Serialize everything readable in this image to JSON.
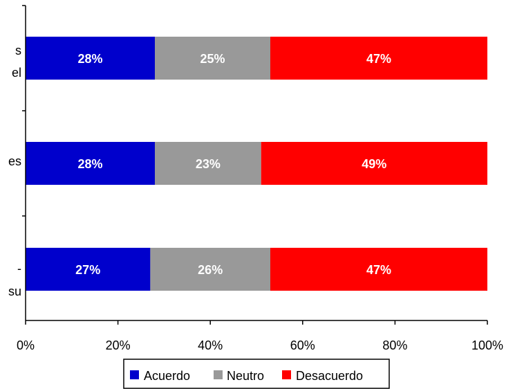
{
  "chart_data": {
    "type": "bar",
    "orientation": "horizontal",
    "stacked": true,
    "categories": [
      "s\nel",
      "es",
      "-\nsu"
    ],
    "series": [
      {
        "name": "Acuerdo",
        "color": "#0000cc",
        "values": [
          28,
          28,
          27
        ],
        "labels": [
          "28%",
          "28%",
          "27%"
        ]
      },
      {
        "name": "Neutro",
        "color": "#999999",
        "values": [
          25,
          23,
          26
        ],
        "labels": [
          "25%",
          "23%",
          "26%"
        ]
      },
      {
        "name": "Desacuerdo",
        "color": "#ff0000",
        "values": [
          47,
          49,
          47
        ],
        "labels": [
          "47%",
          "49%",
          "47%"
        ]
      }
    ],
    "xlim": [
      0,
      100
    ],
    "xticks": [
      "0%",
      "20%",
      "40%",
      "60%",
      "80%",
      "100%"
    ],
    "grid": false,
    "legend_position": "bottom"
  }
}
